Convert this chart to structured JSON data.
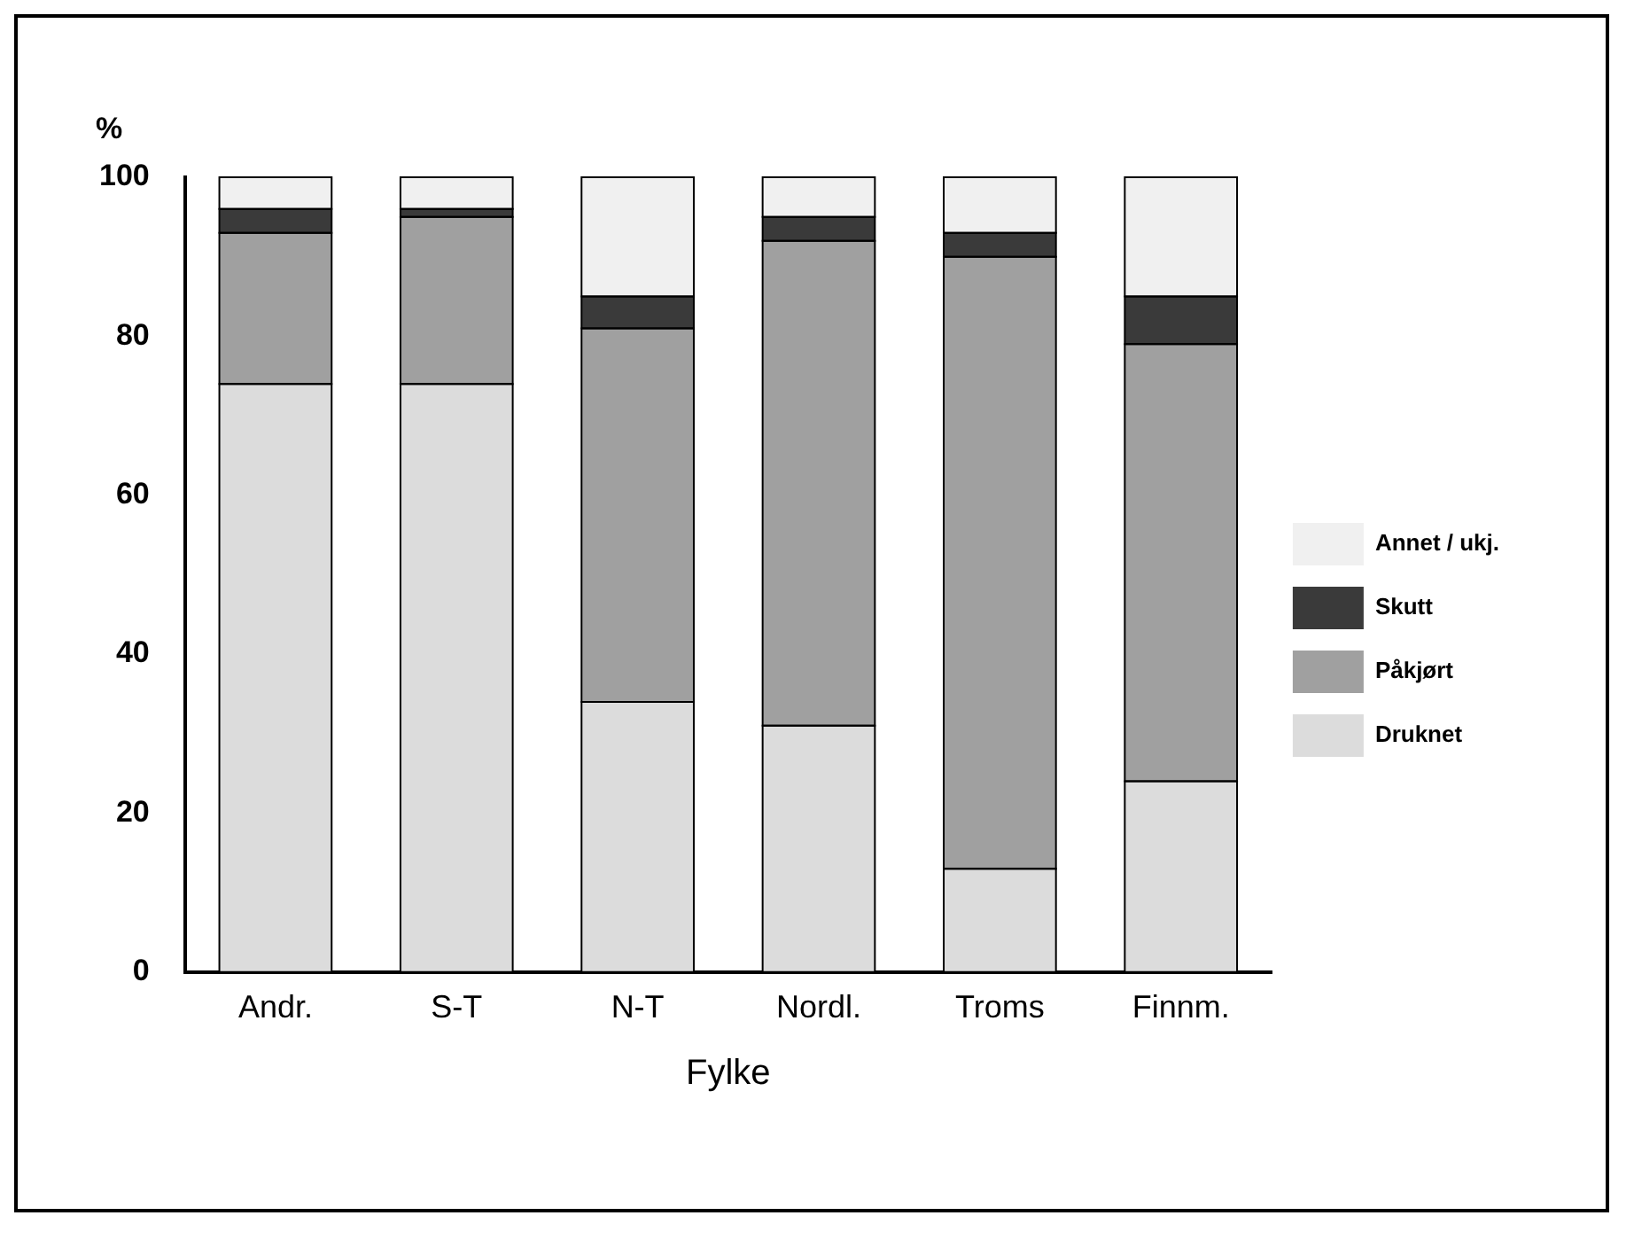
{
  "chart_data": {
    "type": "bar",
    "stacked": true,
    "ylabel": "%",
    "xlabel": "Fylke",
    "categories": [
      "Andr.",
      "S-T",
      "N-T",
      "Nordl.",
      "Troms",
      "Finnm."
    ],
    "series": [
      {
        "name": "Druknet",
        "color": "#dcdcdc",
        "values": [
          74,
          74,
          34,
          31,
          13,
          24
        ]
      },
      {
        "name": "Påkjørt",
        "color": "#a0a0a0",
        "values": [
          19,
          21,
          47,
          61,
          77,
          55
        ]
      },
      {
        "name": "Skutt",
        "color": "#3a3a3a",
        "values": [
          3,
          1,
          4,
          3,
          3,
          6
        ]
      },
      {
        "name": "Annet / ukj.",
        "color": "#f0f0f0",
        "values": [
          4,
          4,
          15,
          5,
          7,
          15
        ]
      }
    ],
    "ylim": [
      0,
      100
    ],
    "yticks": [
      0,
      20,
      40,
      60,
      80,
      100
    ],
    "grid": false,
    "legend": "right"
  }
}
